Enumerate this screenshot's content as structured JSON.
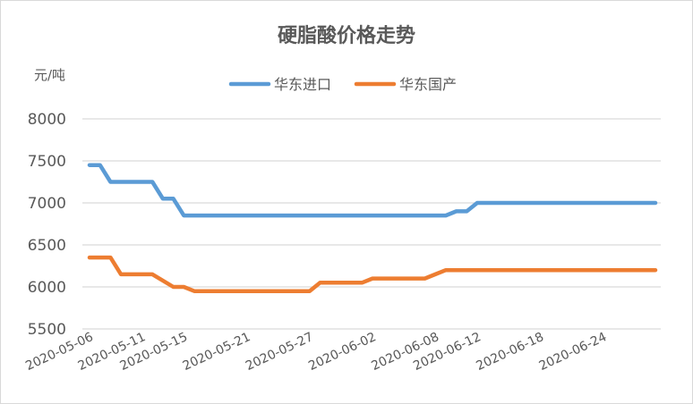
{
  "chart_data": {
    "type": "line",
    "title": "硬脂酸价格走势",
    "ylabel": "元/吨",
    "xlabel": "",
    "ylim": [
      5500,
      8000
    ],
    "yticks": [
      5500,
      6000,
      6500,
      7000,
      7500,
      8000
    ],
    "xlim": [
      "2020-05-06",
      "2020-06-29"
    ],
    "xticks": [
      "2020-05-06",
      "2020-05-11",
      "2020-05-15",
      "2020-05-21",
      "2020-05-27",
      "2020-06-02",
      "2020-06-08",
      "2020-06-12",
      "2020-06-18",
      "2020-06-24"
    ],
    "grid": true,
    "legend_position": "top",
    "series": [
      {
        "name": "华东进口",
        "color": "#5b9bd5",
        "points": [
          {
            "x": "2020-05-06",
            "y": 7450
          },
          {
            "x": "2020-05-07",
            "y": 7450
          },
          {
            "x": "2020-05-08",
            "y": 7250
          },
          {
            "x": "2020-05-12",
            "y": 7250
          },
          {
            "x": "2020-05-13",
            "y": 7050
          },
          {
            "x": "2020-05-14",
            "y": 7050
          },
          {
            "x": "2020-05-15",
            "y": 6850
          },
          {
            "x": "2020-06-09",
            "y": 6850
          },
          {
            "x": "2020-06-10",
            "y": 6900
          },
          {
            "x": "2020-06-11",
            "y": 6900
          },
          {
            "x": "2020-06-12",
            "y": 7000
          },
          {
            "x": "2020-06-29",
            "y": 7000
          }
        ]
      },
      {
        "name": "华东国产",
        "color": "#ed7d31",
        "points": [
          {
            "x": "2020-05-06",
            "y": 6350
          },
          {
            "x": "2020-05-08",
            "y": 6350
          },
          {
            "x": "2020-05-09",
            "y": 6150
          },
          {
            "x": "2020-05-12",
            "y": 6150
          },
          {
            "x": "2020-05-14",
            "y": 6000
          },
          {
            "x": "2020-05-15",
            "y": 6000
          },
          {
            "x": "2020-05-16",
            "y": 5950
          },
          {
            "x": "2020-05-27",
            "y": 5950
          },
          {
            "x": "2020-05-28",
            "y": 6050
          },
          {
            "x": "2020-06-01",
            "y": 6050
          },
          {
            "x": "2020-06-02",
            "y": 6100
          },
          {
            "x": "2020-06-07",
            "y": 6100
          },
          {
            "x": "2020-06-08",
            "y": 6150
          },
          {
            "x": "2020-06-09",
            "y": 6200
          },
          {
            "x": "2020-06-29",
            "y": 6200
          }
        ]
      }
    ]
  }
}
